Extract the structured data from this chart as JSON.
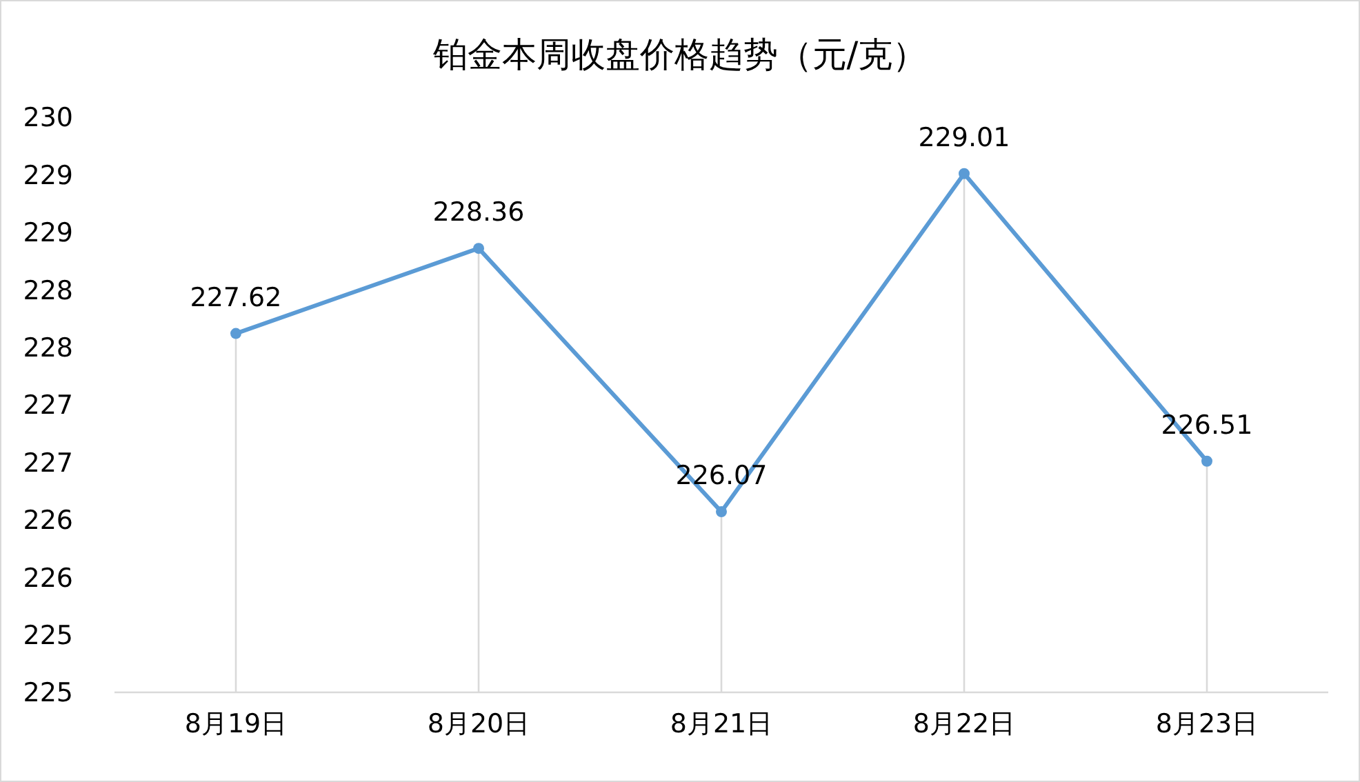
{
  "chart_data": {
    "type": "line",
    "title": "铂金本周收盘价格趋势（元/克）",
    "categories": [
      "8月19日",
      "8月20日",
      "8月21日",
      "8月22日",
      "8月23日"
    ],
    "series": [
      {
        "color": "#5b9bd5",
        "values": [
          227.62,
          228.36,
          226.07,
          229.01,
          226.51
        ]
      }
    ],
    "ylim": [
      224.5,
      229.5
    ],
    "yticks": [
      {
        "value": 224.5,
        "label": "225"
      },
      {
        "value": 225,
        "label": "225"
      },
      {
        "value": 225.5,
        "label": "226"
      },
      {
        "value": 226,
        "label": "226"
      },
      {
        "value": 226.5,
        "label": "227"
      },
      {
        "value": 227,
        "label": "227"
      },
      {
        "value": 227.5,
        "label": "228"
      },
      {
        "value": 228,
        "label": "228"
      },
      {
        "value": 228.5,
        "label": "229"
      },
      {
        "value": 229,
        "label": "229"
      },
      {
        "value": 229.5,
        "label": "230"
      }
    ],
    "marker": "circle",
    "data_labels": true
  }
}
